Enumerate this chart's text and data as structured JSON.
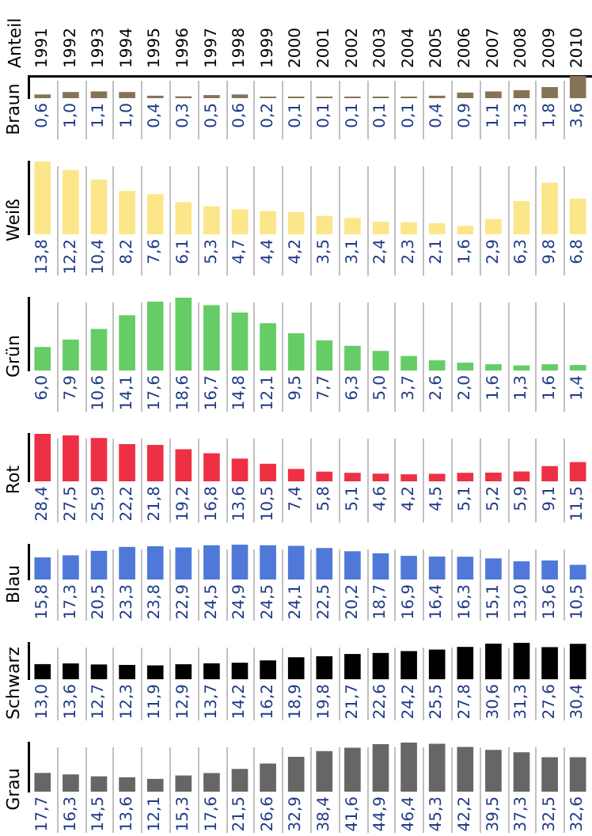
{
  "chart_data": [
    {
      "type": "bar",
      "annotations": [
        "Anteil"
      ],
      "ylabel": "Braun",
      "tick_labels": "x",
      "grid": "x",
      "categories": [
        "1991",
        "1992",
        "1993",
        "1994",
        "1995",
        "1996",
        "1997",
        "1998",
        "1999",
        "2000",
        "2001",
        "2002",
        "2003",
        "2004",
        "2005",
        "2006",
        "2007",
        "2008",
        "2009",
        "2010"
      ],
      "color": "#857357",
      "values": [
        0.6,
        1.0,
        1.1,
        1.0,
        0.4,
        0.3,
        0.5,
        0.6,
        0.2,
        0.1,
        0.1,
        0.1,
        0.1,
        0.1,
        0.4,
        0.9,
        1.1,
        1.3,
        1.8,
        3.6
      ],
      "value_labels": [
        "0,6",
        "1,0",
        "1,1",
        "1,0",
        "0,4",
        "0,3",
        "0,5",
        "0,6",
        "0,2",
        "0,1",
        "0,1",
        "0,1",
        "0,1",
        "0,1",
        "0,4",
        "0,9",
        "1,1",
        "1,3",
        "1,8",
        "3,6"
      ]
    },
    {
      "type": "bar",
      "ylabel": "Weiß",
      "tick_labels": false,
      "grid": "x",
      "categories": [
        "1991",
        "1992",
        "1993",
        "1994",
        "1995",
        "1996",
        "1997",
        "1998",
        "1999",
        "2000",
        "2001",
        "2002",
        "2003",
        "2004",
        "2005",
        "2006",
        "2007",
        "2008",
        "2009",
        "2010"
      ],
      "color": "#fce68a",
      "values": [
        13.8,
        12.2,
        10.4,
        8.2,
        7.6,
        6.1,
        5.3,
        4.7,
        4.4,
        4.2,
        3.5,
        3.1,
        2.4,
        2.3,
        2.1,
        1.6,
        2.9,
        6.3,
        9.8,
        6.8
      ],
      "value_labels": [
        "13,8",
        "12,2",
        "10,4",
        "8,2",
        "7,6",
        "6,1",
        "5,3",
        "4,7",
        "4,4",
        "4,2",
        "3,5",
        "3,1",
        "2,4",
        "2,3",
        "2,1",
        "1,6",
        "2,9",
        "6,3",
        "9,8",
        "6,8"
      ]
    },
    {
      "type": "bar",
      "ylabel": "Grün",
      "tick_labels": false,
      "grid": "x",
      "categories": [
        "1991",
        "1992",
        "1993",
        "1994",
        "1995",
        "1996",
        "1997",
        "1998",
        "1999",
        "2000",
        "2001",
        "2002",
        "2003",
        "2004",
        "2005",
        "2006",
        "2007",
        "2008",
        "2009",
        "2010"
      ],
      "color": "#66cc66",
      "values": [
        6.0,
        7.9,
        10.6,
        14.1,
        17.6,
        18.6,
        16.7,
        14.8,
        12.1,
        9.5,
        7.7,
        6.3,
        5.0,
        3.7,
        2.6,
        2.0,
        1.6,
        1.3,
        1.6,
        1.4
      ],
      "value_labels": [
        "6,0",
        "7,9",
        "10,6",
        "14,1",
        "17,6",
        "18,6",
        "16,7",
        "14,8",
        "12,1",
        "9,5",
        "7,7",
        "6,3",
        "5,0",
        "3,7",
        "2,6",
        "2,0",
        "1,6",
        "1,3",
        "1,6",
        "1,4"
      ]
    },
    {
      "type": "bar",
      "ylabel": "Rot",
      "tick_labels": false,
      "grid": "x",
      "categories": [
        "1991",
        "1992",
        "1993",
        "1994",
        "1995",
        "1996",
        "1997",
        "1998",
        "1999",
        "2000",
        "2001",
        "2002",
        "2003",
        "2004",
        "2005",
        "2006",
        "2007",
        "2008",
        "2009",
        "2010"
      ],
      "color": "#ee3044",
      "values": [
        28.4,
        27.5,
        25.9,
        22.2,
        21.8,
        19.2,
        16.8,
        13.6,
        10.5,
        7.4,
        5.8,
        5.1,
        4.6,
        4.2,
        4.5,
        5.1,
        5.2,
        5.9,
        9.1,
        11.5
      ],
      "value_labels": [
        "28,4",
        "27,5",
        "25,9",
        "22,2",
        "21,8",
        "19,2",
        "16,8",
        "13,6",
        "10,5",
        "7,4",
        "5,8",
        "5,1",
        "4,6",
        "4,2",
        "4,5",
        "5,1",
        "5,2",
        "5,9",
        "9,1",
        "11,5"
      ]
    },
    {
      "type": "bar",
      "ylabel": "Blau",
      "tick_labels": false,
      "grid": "x",
      "categories": [
        "1991",
        "1992",
        "1993",
        "1994",
        "1995",
        "1996",
        "1997",
        "1998",
        "1999",
        "2000",
        "2001",
        "2002",
        "2003",
        "2004",
        "2005",
        "2006",
        "2007",
        "2008",
        "2009",
        "2010"
      ],
      "color": "#5078d8",
      "values": [
        15.8,
        17.3,
        20.5,
        23.3,
        23.8,
        22.9,
        24.5,
        24.9,
        24.5,
        24.1,
        22.5,
        20.2,
        18.7,
        16.9,
        16.4,
        16.3,
        15.1,
        13.0,
        13.6,
        10.5
      ],
      "value_labels": [
        "15,8",
        "17,3",
        "20,5",
        "23,3",
        "23,8",
        "22,9",
        "24,5",
        "24,9",
        "24,5",
        "24,1",
        "22,5",
        "20,2",
        "18,7",
        "16,9",
        "16,4",
        "16,3",
        "15,1",
        "13,0",
        "13,6",
        "10,5"
      ]
    },
    {
      "type": "bar",
      "ylabel": "Schwarz",
      "tick_labels": false,
      "grid": "x",
      "categories": [
        "1991",
        "1992",
        "1993",
        "1994",
        "1995",
        "1996",
        "1997",
        "1998",
        "1999",
        "2000",
        "2001",
        "2002",
        "2003",
        "2004",
        "2005",
        "2006",
        "2007",
        "2008",
        "2009",
        "2010"
      ],
      "color": "#000000",
      "values": [
        13.0,
        13.6,
        12.7,
        12.3,
        11.9,
        12.9,
        13.7,
        14.2,
        16.2,
        18.9,
        19.8,
        21.7,
        22.6,
        24.2,
        25.5,
        27.8,
        30.6,
        31.3,
        27.6,
        30.4
      ],
      "value_labels": [
        "13,0",
        "13,6",
        "12,7",
        "12,3",
        "11,9",
        "12,9",
        "13,7",
        "14,2",
        "16,2",
        "18,9",
        "19,8",
        "21,7",
        "22,6",
        "24,2",
        "25,5",
        "27,8",
        "30,6",
        "31,3",
        "27,6",
        "30,4"
      ]
    },
    {
      "type": "bar",
      "ylabel": "Grau",
      "tick_labels": false,
      "grid": "x",
      "categories": [
        "1991",
        "1992",
        "1993",
        "1994",
        "1995",
        "1996",
        "1997",
        "1998",
        "1999",
        "2000",
        "2001",
        "2002",
        "2003",
        "2004",
        "2005",
        "2006",
        "2007",
        "2008",
        "2009",
        "2010"
      ],
      "color": "#666666",
      "values": [
        17.7,
        16.3,
        14.5,
        13.6,
        12.1,
        15.3,
        17.6,
        21.5,
        26.6,
        32.9,
        38.4,
        41.6,
        44.9,
        46.4,
        45.3,
        42.2,
        39.5,
        37.3,
        32.5,
        32.6
      ],
      "value_labels": [
        "17,7",
        "16,3",
        "14,5",
        "13,6",
        "12,1",
        "15,3",
        "17,6",
        "21,5",
        "26,6",
        "32,9",
        "38,4",
        "41,6",
        "44,9",
        "46,4",
        "45,3",
        "42,2",
        "39,5",
        "37,3",
        "32,5",
        "32,6"
      ]
    }
  ]
}
